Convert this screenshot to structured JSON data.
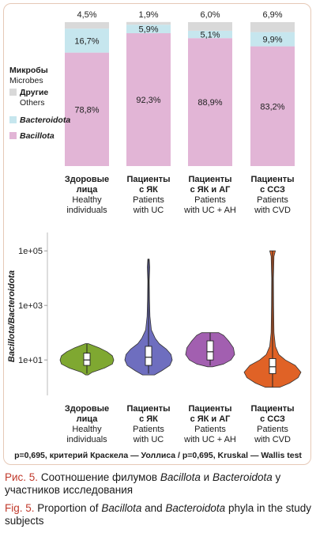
{
  "bar_chart": {
    "type": "stacked-bar",
    "legend": {
      "title_ru": "Микробы",
      "title_en": "Microbes",
      "items": [
        {
          "ru": "Другие",
          "en": "Others",
          "color": "#d9d9d9"
        },
        {
          "ru": "Bacteroidota",
          "en": "",
          "color": "#c6e6ee"
        },
        {
          "ru": "Bacillota",
          "en": "",
          "color": "#e2b5d6"
        }
      ]
    },
    "groups": [
      {
        "ru1": "Здоровые",
        "ru2": "лица",
        "en1": "Healthy",
        "en2": "individuals"
      },
      {
        "ru1": "Пациенты",
        "ru2": "с ЯК",
        "en1": "Patients",
        "en2": "with UC"
      },
      {
        "ru1": "Пациенты",
        "ru2": "с ЯК и АГ",
        "en1": "Patients",
        "en2": "with UC + AH"
      },
      {
        "ru1": "Пациенты",
        "ru2": "с ССЗ",
        "en1": "Patients",
        "en2": "with CVD"
      }
    ],
    "series": [
      {
        "name": "Bacillota",
        "values": [
          78.8,
          92.3,
          88.9,
          83.2
        ],
        "labels": [
          "78,8%",
          "92,3%",
          "88,9%",
          "83,2%"
        ]
      },
      {
        "name": "Bacteroidota",
        "values": [
          16.7,
          5.9,
          5.1,
          9.9
        ],
        "labels": [
          "16,7%",
          "5,9%",
          "5,1%",
          "9,9%"
        ]
      },
      {
        "name": "Others",
        "values": [
          4.5,
          1.9,
          6.0,
          6.9
        ],
        "labels": [
          "4,5%",
          "1,9%",
          "6,0%",
          "6,9%"
        ]
      }
    ]
  },
  "chart_data": {
    "type": "violin",
    "ylabel": "Bacillota/Bacteroidota",
    "yscale": "log10",
    "yticks": [
      "1e+01",
      "1e+03",
      "1e+05"
    ],
    "ylim_log10": [
      -0.3,
      5.5
    ],
    "categories": [
      "Healthy individuals",
      "Patients with UC",
      "Patients with UC + AH",
      "Patients with CVD"
    ],
    "series": [
      {
        "group": 0,
        "color": "#7fa831",
        "min_log10": 0.5,
        "q1_log10": 0.8,
        "median_log10": 1.0,
        "q3_log10": 1.25,
        "max_log10": 1.6
      },
      {
        "group": 1,
        "color": "#6e6ebf",
        "min_log10": 0.5,
        "q1_log10": 0.8,
        "median_log10": 1.1,
        "q3_log10": 1.5,
        "max_log10": 4.7
      },
      {
        "group": 2,
        "color": "#a25fb0",
        "min_log10": 0.8,
        "q1_log10": 1.0,
        "median_log10": 1.3,
        "q3_log10": 1.7,
        "max_log10": 2.0
      },
      {
        "group": 3,
        "color": "#e06226",
        "min_log10": 0.0,
        "q1_log10": 0.5,
        "median_log10": 0.75,
        "q3_log10": 1.05,
        "max_log10": 5.0
      }
    ],
    "stat_note": "p=0,695, критерий Краскела — Уоллиса / p=0,695, Kruskal — Wallis test"
  },
  "caption": {
    "ru_prefix": "Рис. 5.",
    "ru_text_1": " Соотношение филумов ",
    "ru_italic_1": "Bacillota",
    "ru_text_2": " и ",
    "ru_italic_2": "Bacteroidota",
    "ru_text_3": " у участников исследования",
    "en_prefix": "Fig. 5.",
    "en_text_1": " Proportion of ",
    "en_italic_1": "Bacillota",
    "en_text_2": " and ",
    "en_italic_2": "Bacteroidota",
    "en_text_3": " phyla in the study subjects",
    "prefix_color": "#c0392b"
  }
}
